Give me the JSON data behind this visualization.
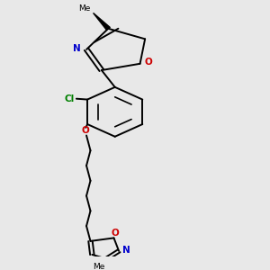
{
  "background_color": "#e8e8e8",
  "line_color": "#000000",
  "N_color": "#0000cc",
  "O_color": "#cc0000",
  "Cl_color": "#008000",
  "line_width": 1.4,
  "figsize": [
    3.0,
    3.0
  ],
  "dpi": 100,
  "xlim": [
    0.1,
    0.9
  ],
  "ylim": [
    0.02,
    1.0
  ]
}
